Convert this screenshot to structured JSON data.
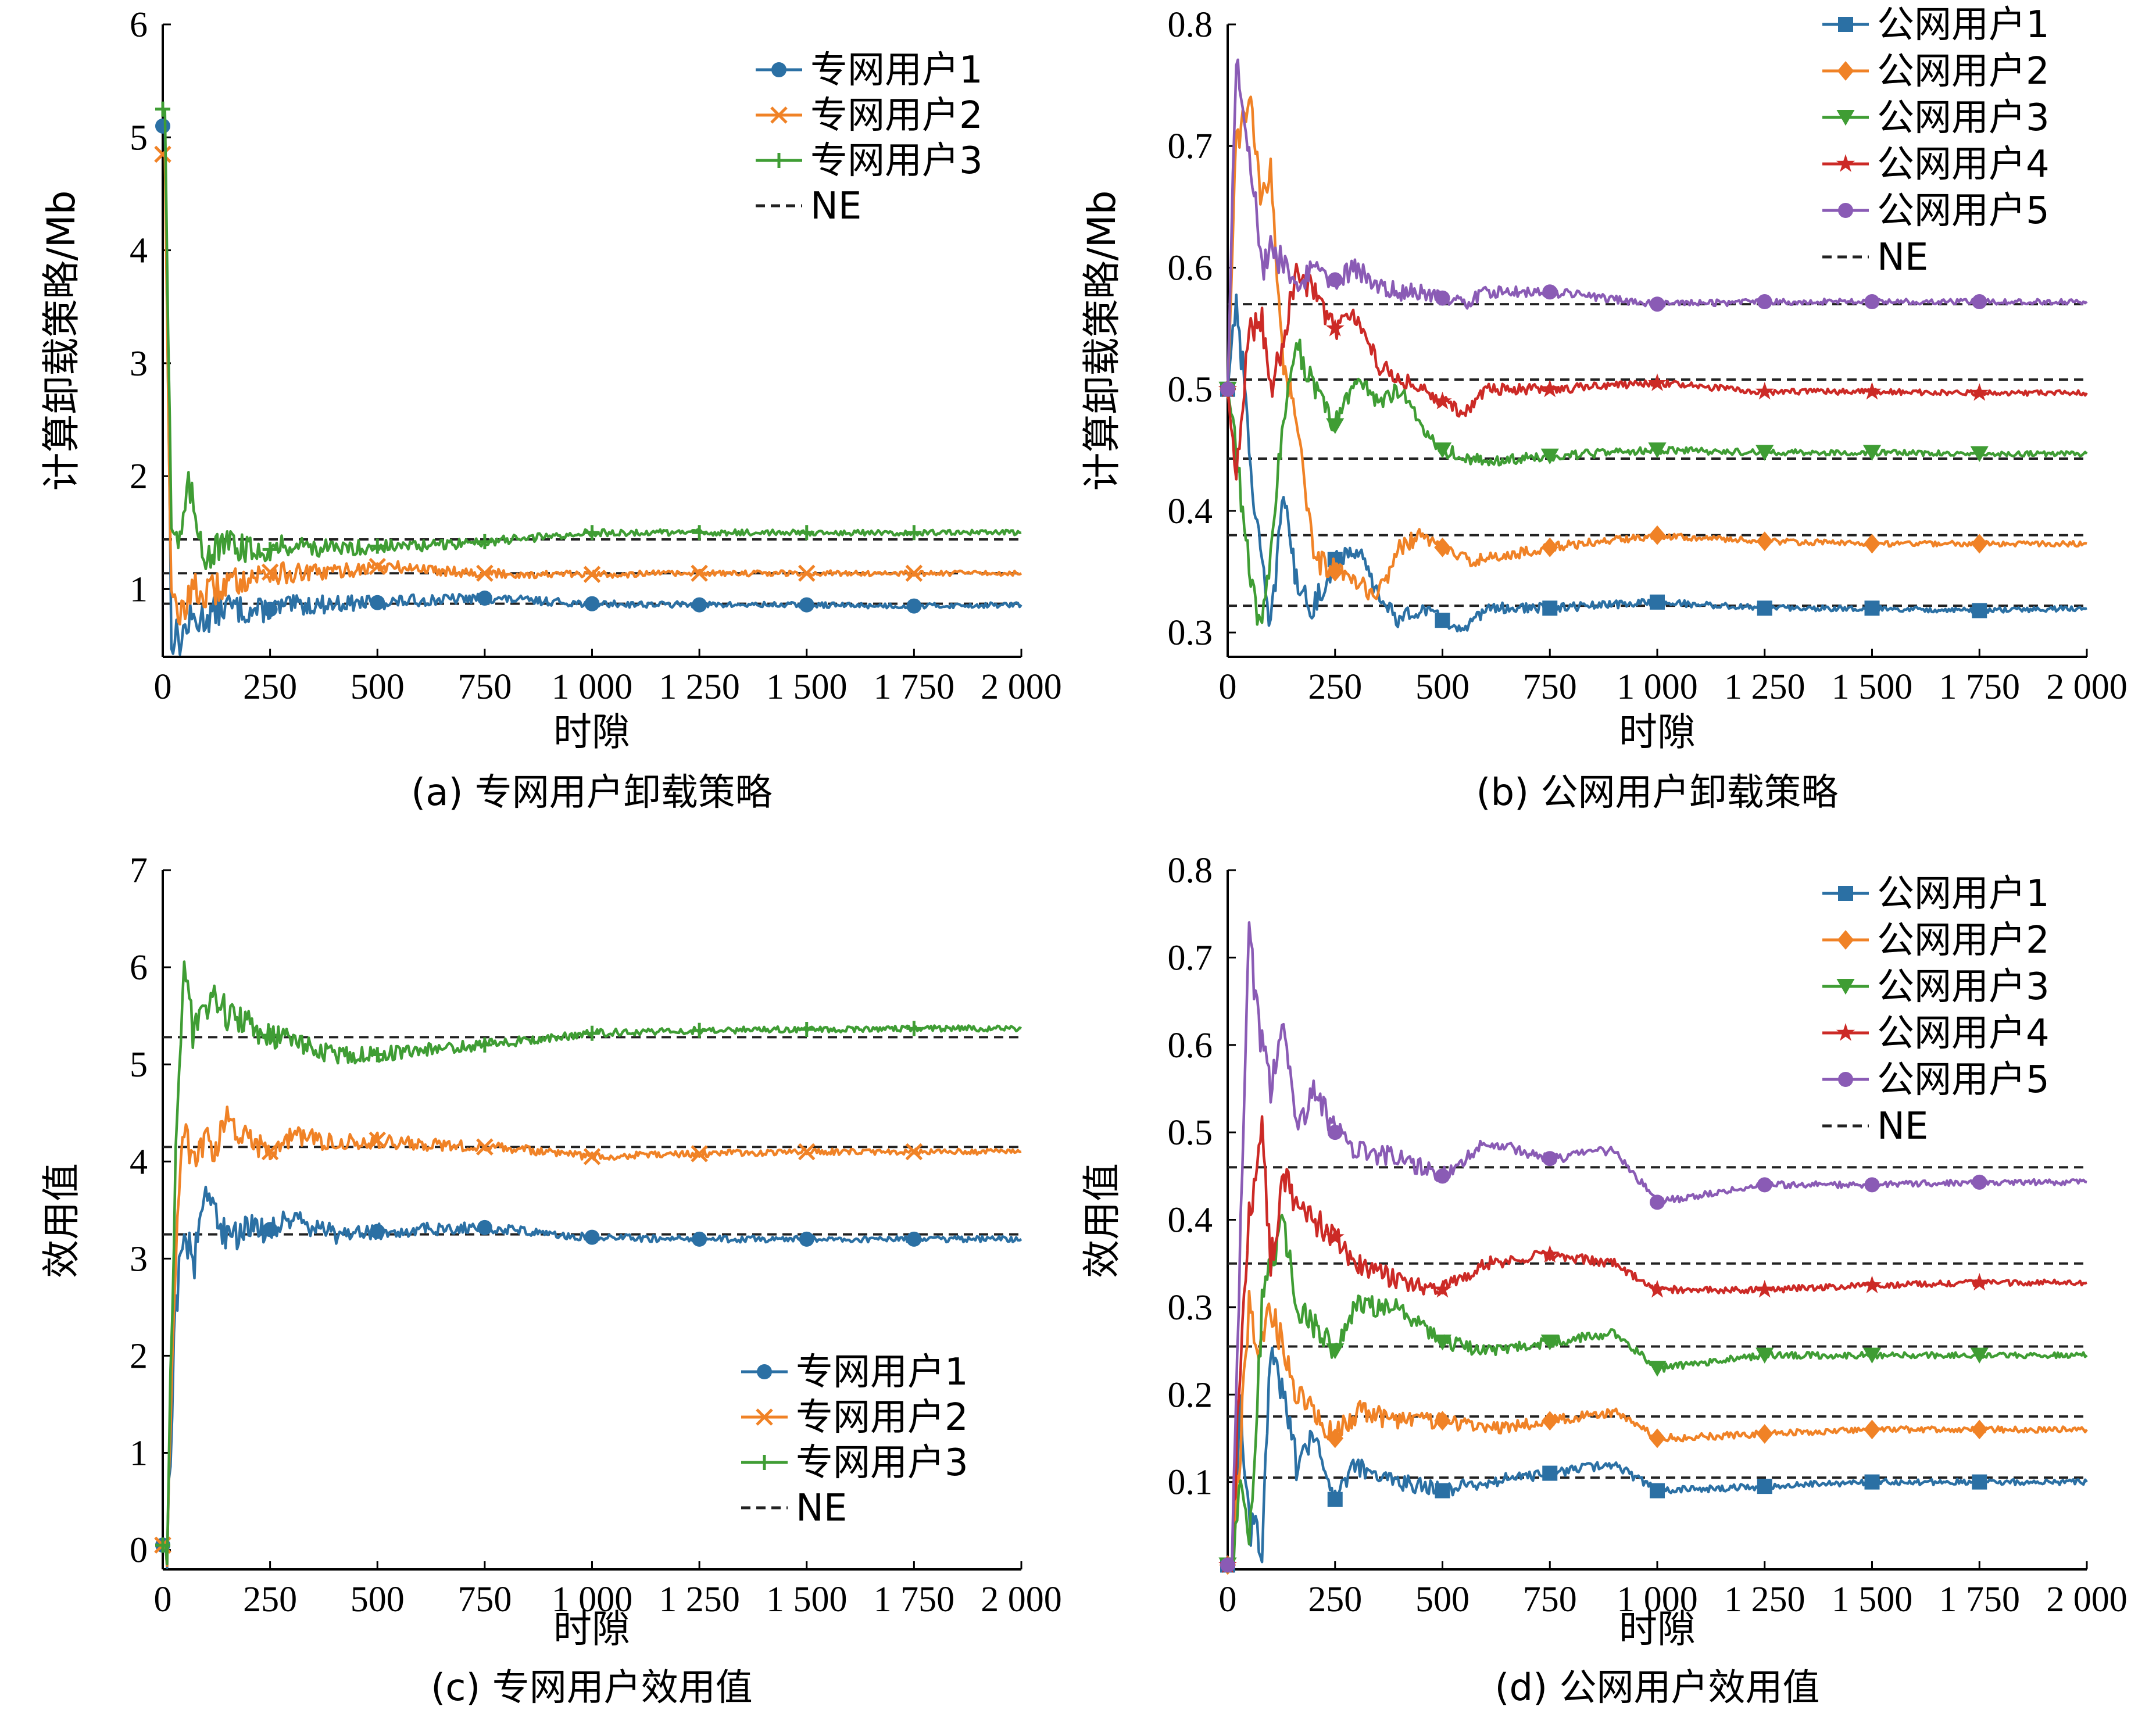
{
  "colors": {
    "series1": "#2b70a4",
    "series2": "#f08226",
    "series3": "#3f9d34",
    "series4": "#cc2a26",
    "series5": "#8a5bb5",
    "ne": "#222222"
  },
  "chart_data": [
    {
      "type": "line",
      "caption": "(a) 专网用户卸载策略",
      "xlabel": "时隙",
      "ylabel": "计算卸载策略/Mb",
      "xlim": [
        0,
        2000
      ],
      "ylim": [
        0.4,
        6
      ],
      "xticks": [
        0,
        250,
        500,
        750,
        1000,
        1250,
        1500,
        1750,
        2000
      ],
      "xtick_labels": [
        "0",
        "250",
        "500",
        "750",
        "1 000",
        "1 250",
        "1 500",
        "1 750",
        "2 000"
      ],
      "yticks": [
        1,
        2,
        3,
        4,
        5,
        6
      ],
      "ytick_labels": [
        "1",
        "2",
        "3",
        "4",
        "5",
        "6"
      ],
      "legend_position": "top-right",
      "ne_label": "NE",
      "series": [
        {
          "name": "专网用户1",
          "marker": "circle",
          "x": [
            0,
            5,
            20,
            40,
            60,
            100,
            150,
            200,
            250,
            300,
            400,
            500,
            600,
            750,
            850,
            1000,
            1250,
            1500,
            1750,
            2000
          ],
          "y": [
            5.1,
            5.1,
            0.6,
            0.55,
            0.7,
            0.75,
            0.85,
            0.8,
            0.82,
            0.85,
            0.87,
            0.88,
            0.9,
            0.92,
            0.9,
            0.87,
            0.86,
            0.86,
            0.85,
            0.86
          ],
          "ne": 0.87
        },
        {
          "name": "专网用户2",
          "marker": "x",
          "x": [
            0,
            5,
            20,
            40,
            60,
            100,
            150,
            200,
            250,
            300,
            400,
            500,
            600,
            750,
            850,
            1000,
            1250,
            1500,
            1750,
            2000
          ],
          "y": [
            4.85,
            4.85,
            0.9,
            0.7,
            1.0,
            0.95,
            1.05,
            1.1,
            1.15,
            1.13,
            1.15,
            1.2,
            1.18,
            1.14,
            1.13,
            1.13,
            1.14,
            1.14,
            1.14,
            1.14
          ],
          "ne": 1.14
        },
        {
          "name": "专网用户3",
          "marker": "plus",
          "x": [
            0,
            5,
            20,
            40,
            60,
            100,
            150,
            200,
            250,
            300,
            400,
            500,
            600,
            750,
            850,
            1000,
            1250,
            1500,
            1750,
            2000
          ],
          "y": [
            5.25,
            5.25,
            1.6,
            1.4,
            1.9,
            1.3,
            1.4,
            1.35,
            1.35,
            1.4,
            1.35,
            1.38,
            1.38,
            1.42,
            1.45,
            1.5,
            1.5,
            1.5,
            1.5,
            1.5
          ],
          "ne": 1.44
        }
      ]
    },
    {
      "type": "line",
      "caption": "(b) 公网用户卸载策略",
      "xlabel": "时隙",
      "ylabel": "计算卸载策略/Mb",
      "xlim": [
        0,
        2000
      ],
      "ylim": [
        0.28,
        0.8
      ],
      "xticks": [
        0,
        250,
        500,
        750,
        1000,
        1250,
        1500,
        1750,
        2000
      ],
      "xtick_labels": [
        "0",
        "250",
        "500",
        "750",
        "1 000",
        "1 250",
        "1 500",
        "1 750",
        "2 000"
      ],
      "yticks": [
        0.3,
        0.4,
        0.5,
        0.6,
        0.7,
        0.8
      ],
      "ytick_labels": [
        "0.3",
        "0.4",
        "0.5",
        "0.6",
        "0.7",
        "0.8"
      ],
      "legend_position": "top-right",
      "ne_label": "NE",
      "series": [
        {
          "name": "公网用户1",
          "marker": "square",
          "x": [
            0,
            20,
            50,
            80,
            100,
            130,
            160,
            200,
            250,
            300,
            350,
            400,
            450,
            500,
            550,
            600,
            750,
            1000,
            1250,
            1500,
            1750,
            2000
          ],
          "y": [
            0.5,
            0.58,
            0.45,
            0.35,
            0.3,
            0.42,
            0.34,
            0.32,
            0.36,
            0.37,
            0.33,
            0.31,
            0.32,
            0.31,
            0.3,
            0.32,
            0.32,
            0.325,
            0.32,
            0.32,
            0.318,
            0.32
          ],
          "ne": 0.322
        },
        {
          "name": "公网用户2",
          "marker": "diamond",
          "x": [
            0,
            20,
            50,
            80,
            100,
            130,
            160,
            200,
            250,
            300,
            350,
            400,
            450,
            500,
            550,
            600,
            750,
            1000,
            1250,
            1500,
            1750,
            2000
          ],
          "y": [
            0.5,
            0.7,
            0.74,
            0.65,
            0.68,
            0.52,
            0.48,
            0.36,
            0.35,
            0.34,
            0.33,
            0.37,
            0.38,
            0.37,
            0.36,
            0.36,
            0.37,
            0.38,
            0.375,
            0.373,
            0.373,
            0.373
          ],
          "ne": 0.38
        },
        {
          "name": "公网用户3",
          "marker": "triangle-down",
          "x": [
            0,
            20,
            50,
            80,
            100,
            130,
            160,
            200,
            250,
            300,
            350,
            400,
            450,
            500,
            550,
            600,
            750,
            1000,
            1250,
            1500,
            1750,
            2000
          ],
          "y": [
            0.5,
            0.45,
            0.35,
            0.3,
            0.36,
            0.48,
            0.54,
            0.5,
            0.47,
            0.51,
            0.49,
            0.5,
            0.47,
            0.45,
            0.445,
            0.44,
            0.445,
            0.45,
            0.448,
            0.448,
            0.447,
            0.447
          ],
          "ne": 0.443
        },
        {
          "name": "公网用户4",
          "marker": "star",
          "x": [
            0,
            20,
            50,
            80,
            100,
            130,
            160,
            200,
            250,
            300,
            350,
            400,
            450,
            500,
            550,
            600,
            750,
            1000,
            1250,
            1500,
            1750,
            2000
          ],
          "y": [
            0.5,
            0.42,
            0.55,
            0.56,
            0.5,
            0.54,
            0.6,
            0.58,
            0.55,
            0.56,
            0.52,
            0.51,
            0.5,
            0.49,
            0.48,
            0.5,
            0.5,
            0.505,
            0.498,
            0.498,
            0.497,
            0.497
          ],
          "ne": 0.508
        },
        {
          "name": "公网用户5",
          "marker": "circle",
          "x": [
            0,
            20,
            50,
            80,
            100,
            130,
            160,
            200,
            250,
            300,
            350,
            400,
            450,
            500,
            550,
            600,
            750,
            1000,
            1250,
            1500,
            1750,
            2000
          ],
          "y": [
            0.5,
            0.78,
            0.7,
            0.6,
            0.62,
            0.6,
            0.58,
            0.6,
            0.59,
            0.6,
            0.585,
            0.58,
            0.58,
            0.575,
            0.57,
            0.58,
            0.58,
            0.57,
            0.572,
            0.572,
            0.572,
            0.572
          ],
          "ne": 0.57
        }
      ]
    },
    {
      "type": "line",
      "caption": "(c) 专网用户效用值",
      "xlabel": "时隙",
      "ylabel": "效用值",
      "xlim": [
        0,
        2000
      ],
      "ylim": [
        -0.2,
        7
      ],
      "xticks": [
        0,
        250,
        500,
        750,
        1000,
        1250,
        1500,
        1750,
        2000
      ],
      "xtick_labels": [
        "0",
        "250",
        "500",
        "750",
        "1 000",
        "1 250",
        "1 500",
        "1 750",
        "2 000"
      ],
      "yticks": [
        0,
        1,
        2,
        3,
        4,
        5,
        6,
        7
      ],
      "ytick_labels": [
        "0",
        "1",
        "2",
        "3",
        "4",
        "5",
        "6",
        "7"
      ],
      "legend_position": "lower-right",
      "ne_label": "NE",
      "series": [
        {
          "name": "专网用户1",
          "marker": "circle",
          "x": [
            0,
            10,
            30,
            50,
            70,
            100,
            120,
            150,
            200,
            250,
            300,
            400,
            500,
            600,
            750,
            850,
            1000,
            1250,
            1500,
            1750,
            2000
          ],
          "y": [
            0.05,
            0.05,
            2.5,
            3.4,
            2.9,
            3.7,
            3.5,
            3.2,
            3.3,
            3.3,
            3.4,
            3.25,
            3.28,
            3.3,
            3.32,
            3.28,
            3.22,
            3.2,
            3.2,
            3.2,
            3.2
          ],
          "ne": 3.25
        },
        {
          "name": "专网用户2",
          "marker": "x",
          "x": [
            0,
            10,
            30,
            50,
            70,
            100,
            120,
            150,
            200,
            250,
            300,
            400,
            500,
            600,
            750,
            850,
            1000,
            1250,
            1500,
            1750,
            2000
          ],
          "y": [
            0.05,
            0.05,
            3.0,
            4.4,
            3.9,
            4.3,
            4.1,
            4.4,
            4.2,
            4.1,
            4.25,
            4.2,
            4.22,
            4.18,
            4.15,
            4.12,
            4.05,
            4.08,
            4.1,
            4.1,
            4.1
          ],
          "ne": 4.15
        },
        {
          "name": "专网用户3",
          "marker": "plus",
          "x": [
            0,
            10,
            30,
            50,
            70,
            100,
            120,
            150,
            200,
            250,
            300,
            400,
            500,
            600,
            750,
            850,
            1000,
            1250,
            1500,
            1750,
            2000
          ],
          "y": [
            0.05,
            0.05,
            4.0,
            6.2,
            5.3,
            5.6,
            5.7,
            5.5,
            5.4,
            5.3,
            5.25,
            5.1,
            5.1,
            5.15,
            5.2,
            5.25,
            5.32,
            5.35,
            5.36,
            5.37,
            5.37
          ],
          "ne": 5.28
        }
      ]
    },
    {
      "type": "line",
      "caption": "(d) 公网用户效用值",
      "xlabel": "时隙",
      "ylabel": "效用值",
      "xlim": [
        0,
        2000
      ],
      "ylim": [
        0,
        0.8
      ],
      "xticks": [
        0,
        250,
        500,
        750,
        1000,
        1250,
        1500,
        1750,
        2000
      ],
      "xtick_labels": [
        "0",
        "250",
        "500",
        "750",
        "1 000",
        "1 250",
        "1 500",
        "1 750",
        "2 000"
      ],
      "yticks": [
        0.1,
        0.2,
        0.3,
        0.4,
        0.5,
        0.6,
        0.7,
        0.8
      ],
      "ytick_labels": [
        "0.1",
        "0.2",
        "0.3",
        "0.4",
        "0.5",
        "0.6",
        "0.7",
        "0.8"
      ],
      "legend_position": "top-right",
      "ne_label": "NE",
      "series": [
        {
          "name": "公网用户1",
          "marker": "square",
          "x": [
            0,
            10,
            30,
            50,
            80,
            100,
            130,
            160,
            200,
            250,
            300,
            400,
            500,
            600,
            750,
            900,
            1000,
            1250,
            1500,
            1750,
            2000
          ],
          "y": [
            0.005,
            0.005,
            0.2,
            0.05,
            0.03,
            0.25,
            0.2,
            0.12,
            0.15,
            0.08,
            0.12,
            0.1,
            0.09,
            0.1,
            0.11,
            0.12,
            0.09,
            0.095,
            0.1,
            0.1,
            0.1
          ],
          "ne": 0.105
        },
        {
          "name": "公网用户2",
          "marker": "diamond",
          "x": [
            0,
            10,
            30,
            50,
            80,
            100,
            130,
            160,
            200,
            250,
            300,
            400,
            500,
            600,
            750,
            900,
            1000,
            1250,
            1500,
            1750,
            2000
          ],
          "y": [
            0.005,
            0.005,
            0.15,
            0.3,
            0.25,
            0.3,
            0.25,
            0.2,
            0.18,
            0.15,
            0.18,
            0.17,
            0.17,
            0.16,
            0.17,
            0.18,
            0.15,
            0.155,
            0.16,
            0.16,
            0.16
          ],
          "ne": 0.175
        },
        {
          "name": "公网用户3",
          "marker": "triangle-down",
          "x": [
            0,
            10,
            30,
            50,
            80,
            100,
            130,
            160,
            200,
            250,
            300,
            400,
            500,
            600,
            750,
            900,
            1000,
            1250,
            1500,
            1750,
            2000
          ],
          "y": [
            0.005,
            0.005,
            0.1,
            0.01,
            0.3,
            0.35,
            0.4,
            0.3,
            0.28,
            0.25,
            0.3,
            0.3,
            0.26,
            0.25,
            0.26,
            0.27,
            0.23,
            0.245,
            0.245,
            0.245,
            0.245
          ],
          "ne": 0.255
        },
        {
          "name": "公网用户4",
          "marker": "star",
          "x": [
            0,
            10,
            30,
            50,
            80,
            100,
            130,
            160,
            200,
            250,
            300,
            400,
            500,
            600,
            750,
            900,
            1000,
            1250,
            1500,
            1750,
            2000
          ],
          "y": [
            0.005,
            0.005,
            0.25,
            0.4,
            0.5,
            0.35,
            0.45,
            0.42,
            0.4,
            0.38,
            0.35,
            0.33,
            0.32,
            0.35,
            0.36,
            0.35,
            0.32,
            0.32,
            0.325,
            0.328,
            0.328
          ],
          "ne": 0.35
        },
        {
          "name": "公网用户5",
          "marker": "circle",
          "x": [
            0,
            10,
            30,
            50,
            80,
            100,
            130,
            160,
            200,
            250,
            300,
            400,
            500,
            600,
            750,
            900,
            1000,
            1250,
            1500,
            1750,
            2000
          ],
          "y": [
            0.005,
            0.005,
            0.4,
            0.72,
            0.6,
            0.55,
            0.62,
            0.5,
            0.55,
            0.5,
            0.48,
            0.47,
            0.45,
            0.49,
            0.47,
            0.48,
            0.42,
            0.44,
            0.44,
            0.443,
            0.443
          ],
          "ne": 0.46
        }
      ]
    }
  ]
}
